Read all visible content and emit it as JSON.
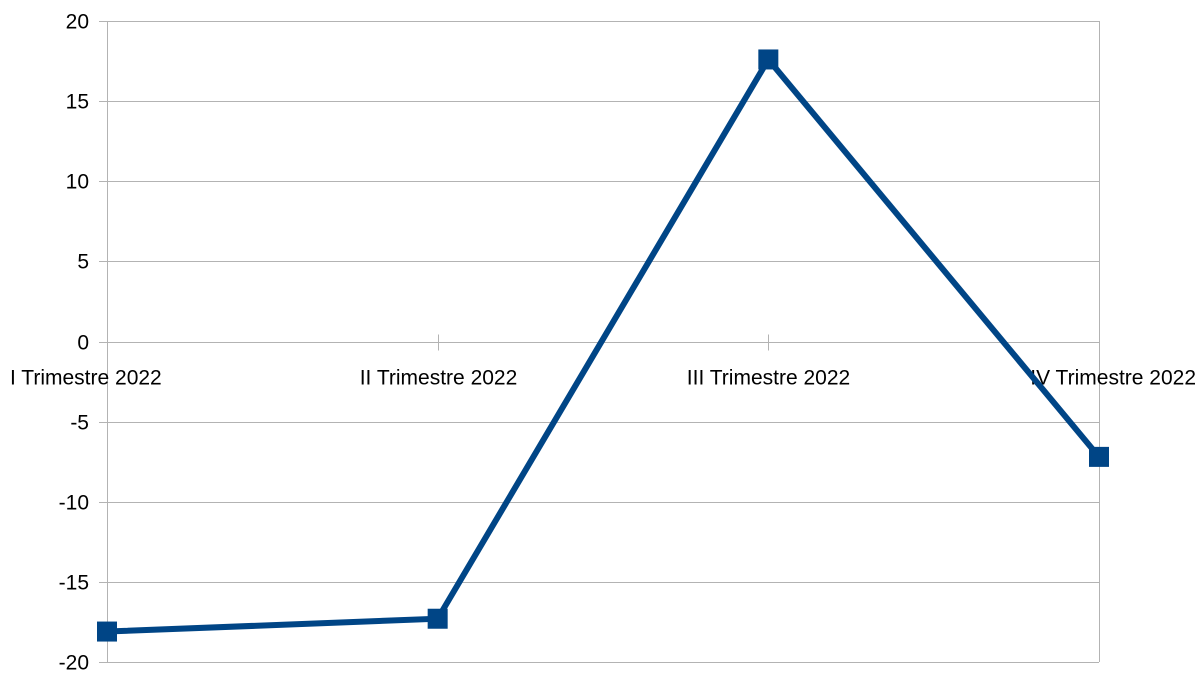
{
  "chart_data": {
    "type": "line",
    "title": "",
    "xlabel": "",
    "ylabel": "",
    "categories": [
      "I Trimestre 2022",
      "II Trimestre 2022",
      "III Trimestre 2022",
      "IV Trimestre 2022"
    ],
    "series": [
      {
        "values": [
          -18.1,
          -17.3,
          17.6,
          -7.2
        ],
        "color": "#004586",
        "marker": "square"
      }
    ],
    "ylim": [
      -20,
      20
    ],
    "yticks": [
      "20",
      "15",
      "10",
      "5",
      "0",
      "-5",
      "-10",
      "-15",
      "-20"
    ],
    "ytick_values": [
      20,
      15,
      10,
      5,
      0,
      -5,
      -10,
      -15,
      -20
    ],
    "grid": true,
    "legend": "none"
  }
}
